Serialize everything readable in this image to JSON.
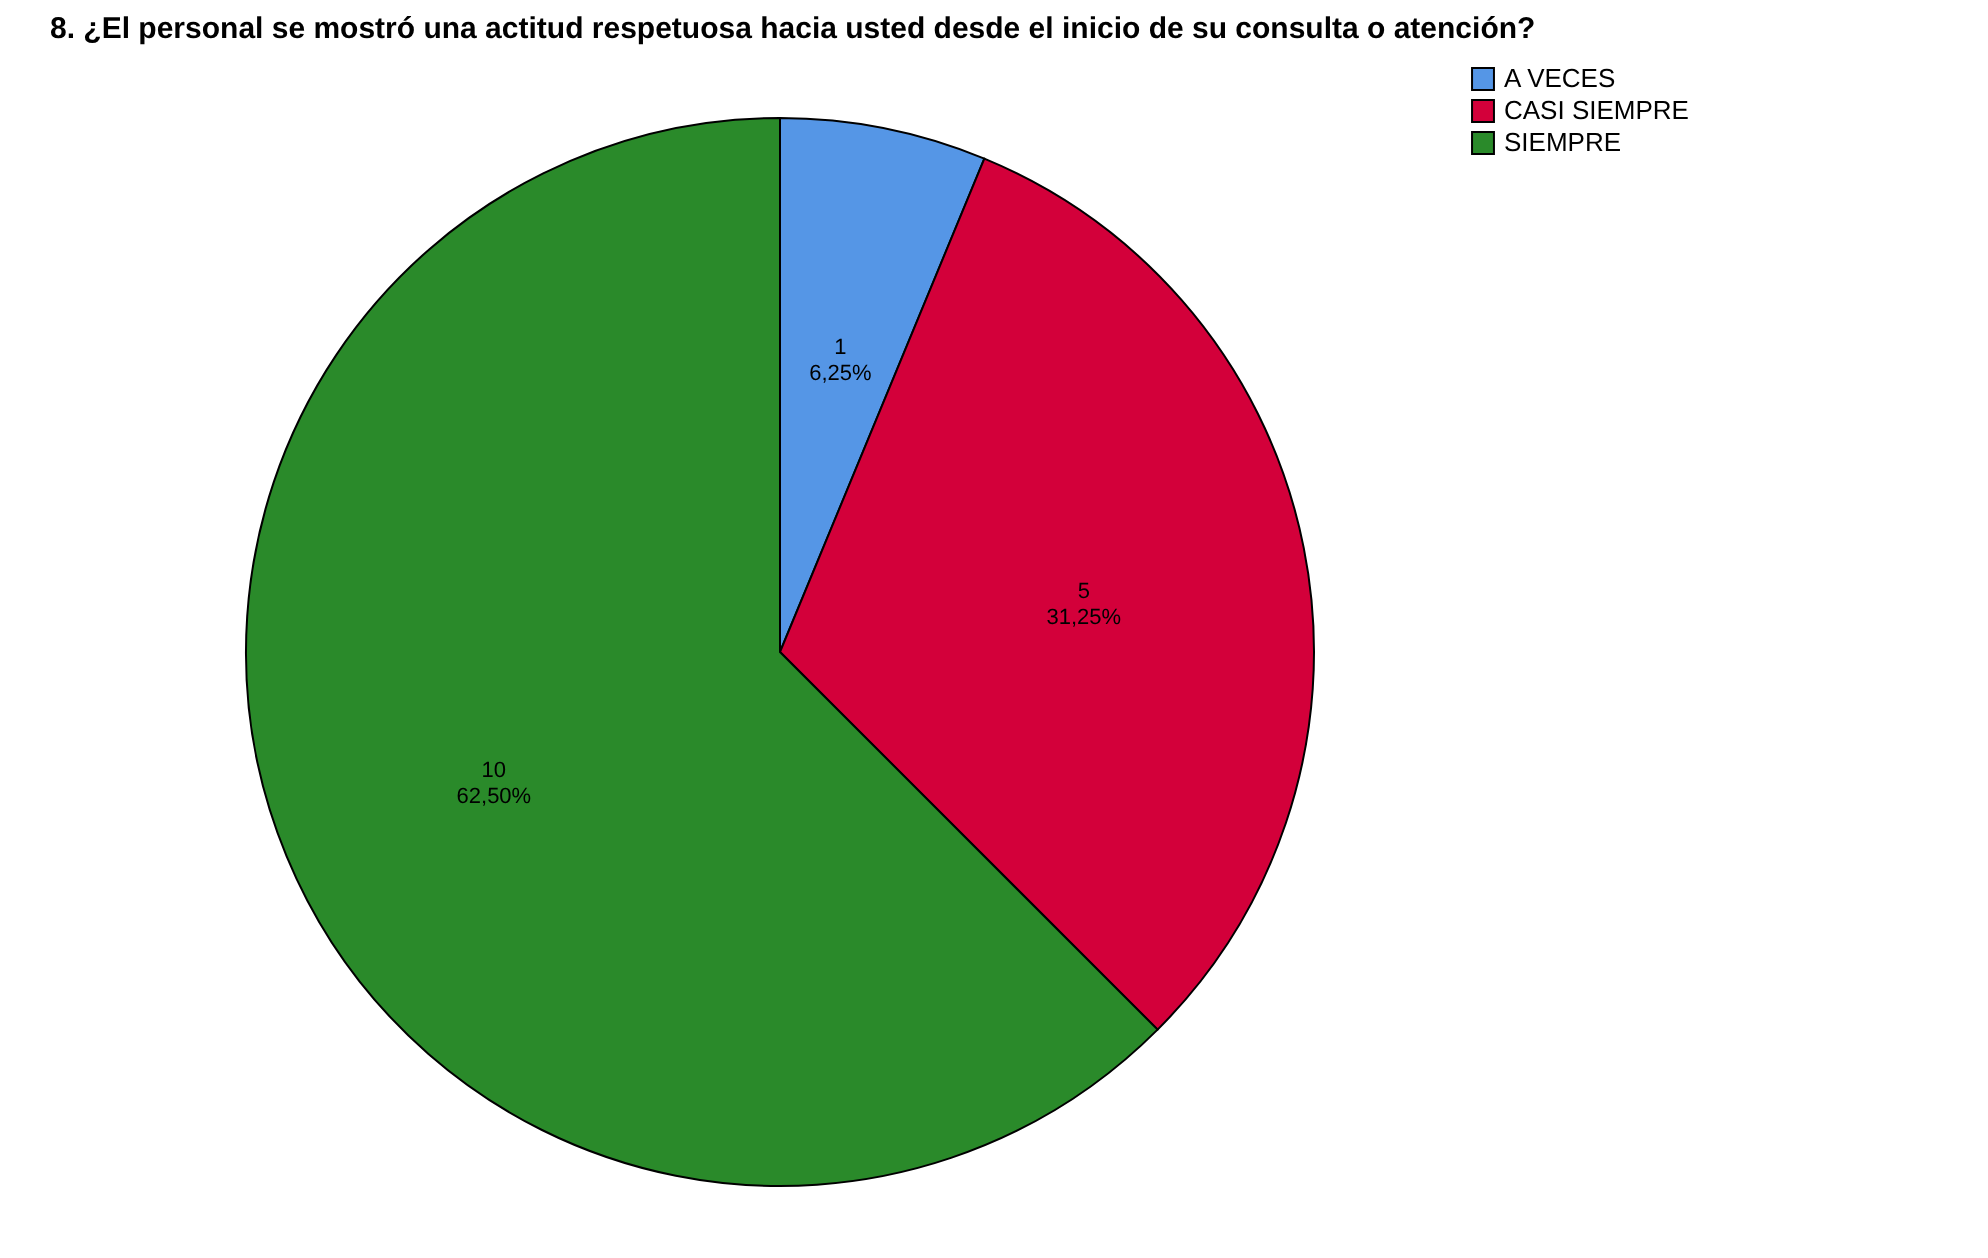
{
  "chart_data": {
    "type": "pie",
    "title": "8. ¿El personal se mostró una actitud respetuosa hacia usted desde el inicio de su consulta o atención?",
    "categories": [
      "A VECES",
      "CASI SIEMPRE",
      "SIEMPRE"
    ],
    "values": [
      1,
      5,
      10
    ],
    "value_labels": [
      "1\n6,25%",
      "5\n31,25%",
      "10\n62,50%"
    ],
    "colors": [
      "#5596e6",
      "#d3003a",
      "#2a8a2a"
    ],
    "legend": "top right"
  }
}
